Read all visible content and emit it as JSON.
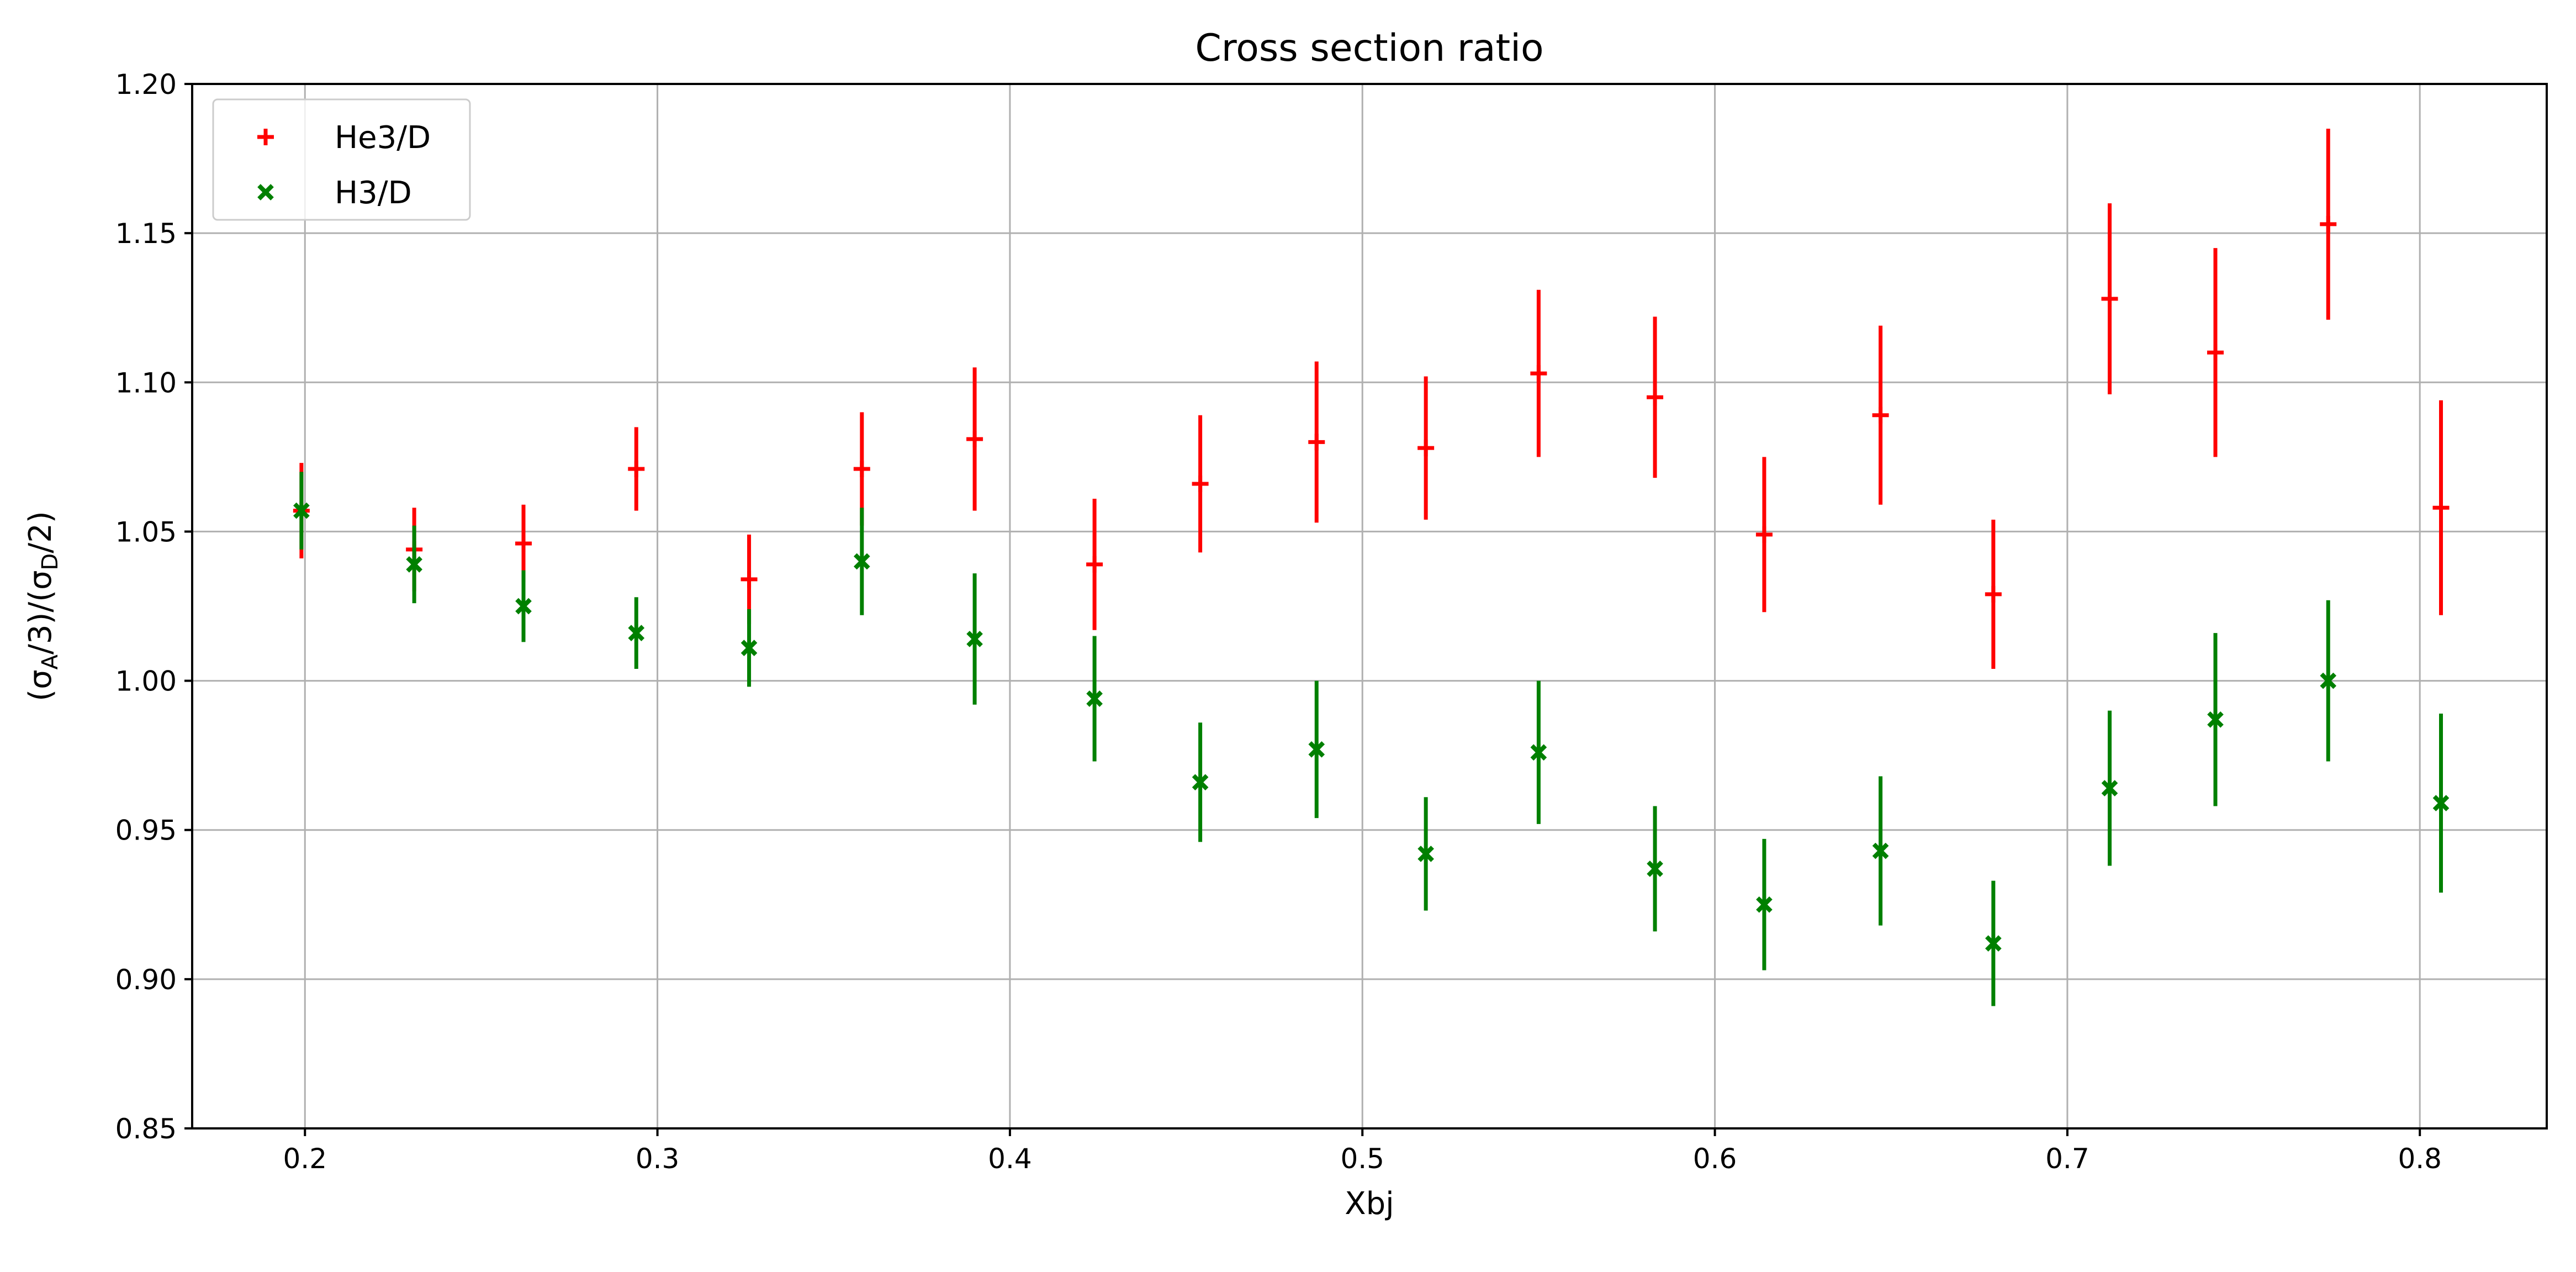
{
  "chart_data": {
    "type": "scatter",
    "title": "Cross section ratio",
    "xlabel": "Xbj",
    "ylabel_num_open": "(σ",
    "ylabel_num_sub": "A",
    "ylabel_num_close": "/3)",
    "ylabel_den_open": "/(σ",
    "ylabel_den_sub": "D",
    "ylabel_den_close": "/2)",
    "xlim": [
      0.168,
      0.836
    ],
    "ylim": [
      0.85,
      1.2
    ],
    "xticks": [
      0.2,
      0.3,
      0.4,
      0.5,
      0.6,
      0.7,
      0.8
    ],
    "xtick_labels": [
      "0.2",
      "0.3",
      "0.4",
      "0.5",
      "0.6",
      "0.7",
      "0.8"
    ],
    "yticks": [
      0.85,
      0.9,
      0.95,
      1.0,
      1.05,
      1.1,
      1.15,
      1.2
    ],
    "ytick_labels": [
      "0.85",
      "0.90",
      "0.95",
      "1.00",
      "1.05",
      "1.10",
      "1.15",
      "1.20"
    ],
    "grid": true,
    "legend_position": "top-left",
    "series": [
      {
        "name": "He3/D",
        "marker": "plus",
        "color": "#ff0000",
        "x": [
          0.199,
          0.231,
          0.262,
          0.294,
          0.326,
          0.358,
          0.39,
          0.424,
          0.454,
          0.487,
          0.518,
          0.55,
          0.583,
          0.614,
          0.647,
          0.679,
          0.712,
          0.742,
          0.774,
          0.806
        ],
        "y": [
          1.057,
          1.044,
          1.046,
          1.071,
          1.034,
          1.071,
          1.081,
          1.039,
          1.066,
          1.08,
          1.078,
          1.103,
          1.095,
          1.049,
          1.089,
          1.029,
          1.128,
          1.11,
          1.153,
          1.058
        ],
        "err": [
          0.016,
          0.014,
          0.013,
          0.014,
          0.015,
          0.019,
          0.024,
          0.022,
          0.023,
          0.027,
          0.024,
          0.028,
          0.027,
          0.026,
          0.03,
          0.025,
          0.032,
          0.035,
          0.032,
          0.036
        ]
      },
      {
        "name": "H3/D",
        "marker": "x",
        "color": "#008000",
        "x": [
          0.199,
          0.231,
          0.262,
          0.294,
          0.326,
          0.358,
          0.39,
          0.424,
          0.454,
          0.487,
          0.518,
          0.55,
          0.583,
          0.614,
          0.647,
          0.679,
          0.712,
          0.742,
          0.774,
          0.806
        ],
        "y": [
          1.057,
          1.039,
          1.025,
          1.016,
          1.011,
          1.04,
          1.014,
          0.994,
          0.966,
          0.977,
          0.942,
          0.976,
          0.937,
          0.925,
          0.943,
          0.912,
          0.964,
          0.987,
          1.0,
          0.959
        ],
        "err": [
          0.013,
          0.013,
          0.012,
          0.012,
          0.013,
          0.018,
          0.022,
          0.021,
          0.02,
          0.023,
          0.019,
          0.024,
          0.021,
          0.022,
          0.025,
          0.021,
          0.026,
          0.029,
          0.027,
          0.03
        ]
      }
    ]
  }
}
